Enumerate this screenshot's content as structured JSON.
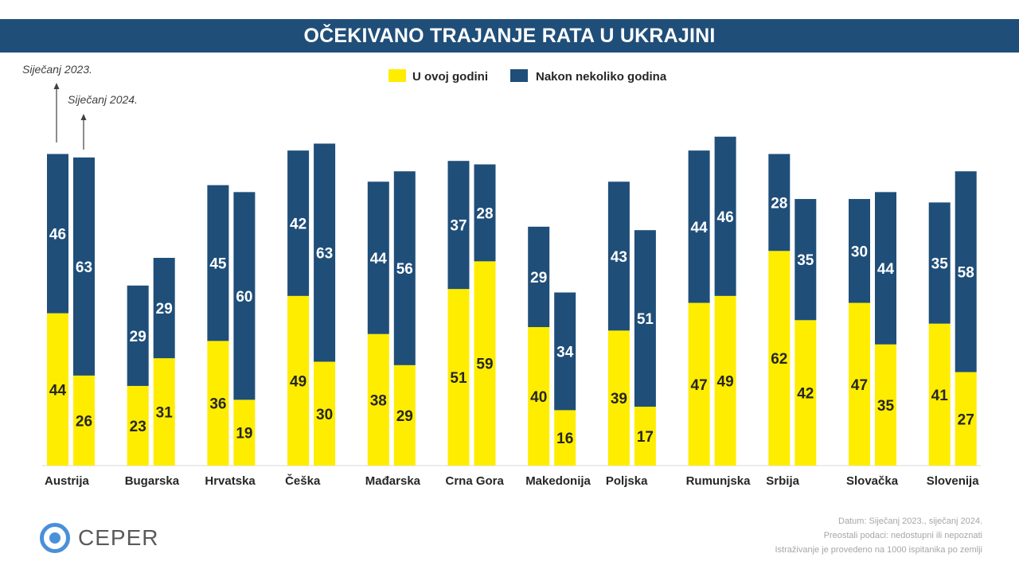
{
  "title": "OČEKIVANO TRAJANJE RATA U UKRAJINI",
  "period_labels": [
    "Siječanj 2023.",
    "Siječanj 2024."
  ],
  "logo_text": "CEPER",
  "footnotes": [
    "Datum: Siječanj 2023., siječanj 2024.",
    "Preostali podaci: nedostupni ili nepoznati",
    "Istraživanje je provedeno na 1000 ispitanika po zemlji"
  ],
  "colors": {
    "this_year": "#ffed00",
    "few_years": "#1f4e79",
    "title_bg": "#1f4e79"
  },
  "chart_data": {
    "type": "bar",
    "stacked": true,
    "grouping": "two stacked bars per country: Siječanj 2023. (left), Siječanj 2024. (right)",
    "categories": [
      "Austrija",
      "Bugarska",
      "Hrvatska",
      "Češka",
      "Mađarska",
      "Crna Gora",
      "Makedonija",
      "Poljska",
      "Rumunjska",
      "Srbija",
      "Slovačka",
      "Slovenija"
    ],
    "legend_position": "top-center",
    "grid": false,
    "series": [
      {
        "name": "U ovoj godini",
        "color": "#ffed00",
        "jan2023": [
          44,
          23,
          36,
          49,
          38,
          51,
          40,
          39,
          47,
          62,
          47,
          41
        ],
        "jan2024": [
          26,
          31,
          19,
          30,
          29,
          59,
          16,
          17,
          49,
          42,
          35,
          27
        ]
      },
      {
        "name": "Nakon nekoliko godina",
        "color": "#1f4e79",
        "jan2023": [
          46,
          29,
          45,
          42,
          44,
          37,
          29,
          43,
          44,
          28,
          30,
          35
        ],
        "jan2024": [
          63,
          29,
          60,
          63,
          56,
          28,
          34,
          51,
          46,
          35,
          44,
          58
        ]
      }
    ],
    "ylim": [
      0,
      100
    ]
  }
}
